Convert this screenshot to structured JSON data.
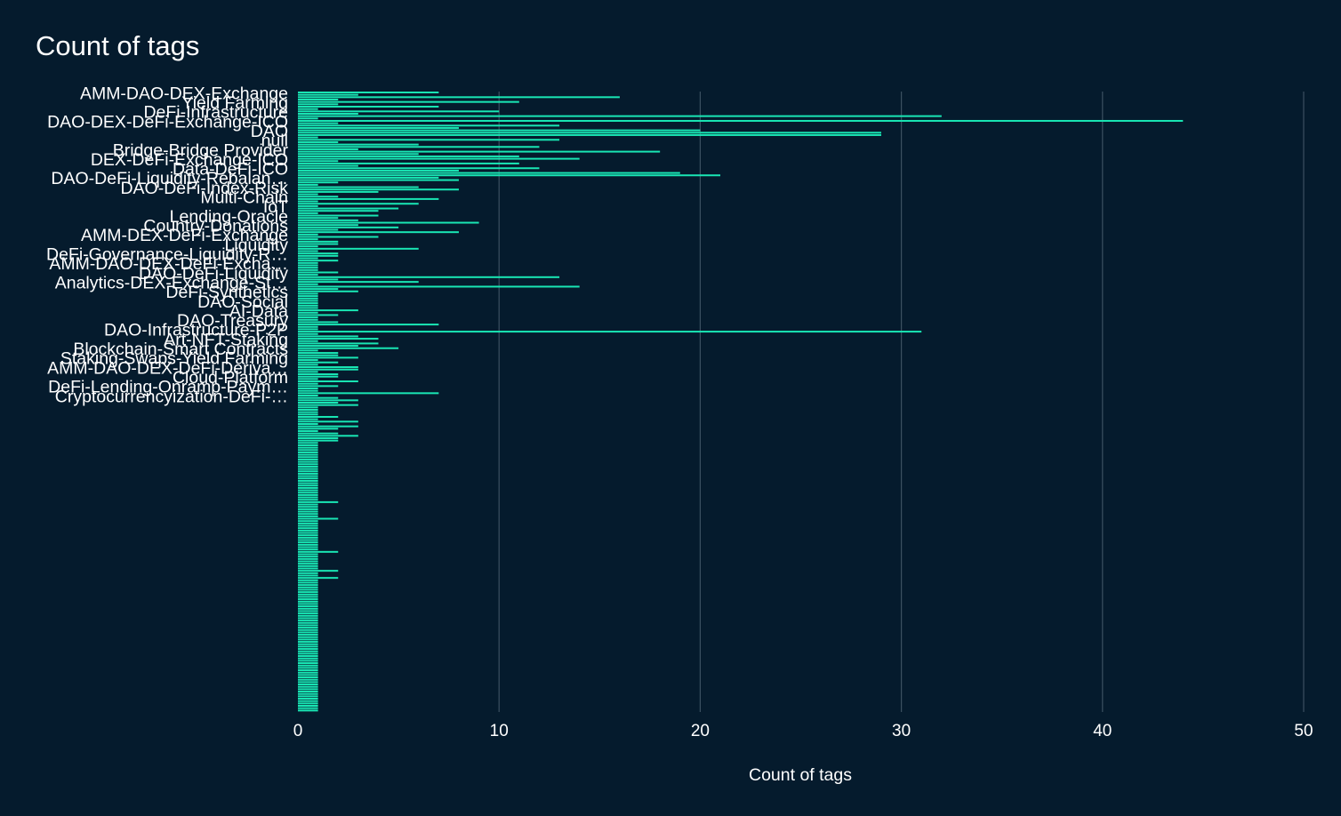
{
  "chart_data": {
    "type": "bar",
    "orientation": "horizontal",
    "title": "Count of tags",
    "xlabel": "Count of tags",
    "ylabel": "",
    "xlim": [
      0,
      50
    ],
    "xticks": [
      0,
      10,
      20,
      30,
      40,
      50
    ],
    "grid": "vertical",
    "bar_color": "#19e6b4",
    "background": "#051b2d",
    "shown_category_labels": [
      "AMM-DAO-DEX-Exchange",
      "Yield Farming",
      "DeFi-Infrastructure",
      "DAO-DEX-DeFi-Exchange-ICO",
      "DAO",
      "null",
      "Bridge-Bridge Provider",
      "DEX-DeFi-Exchange-ICO",
      "Data-DeFi-ICO",
      "DAO-DeFi-Liquidity-Rebalan…",
      "DAO-DeFi-Index-Risk",
      "Multi-Chain",
      "IoT",
      "Lending-Oracle",
      "Country-Donations",
      "AMM-DEX-DeFi-Exchange",
      "Liquidity",
      "DeFi-Governance-Liquidity-R…",
      "AMM-DAO-DEX-DeFi-Excha…",
      "DAO-DeFi-Liquidity",
      "Analytics-DEX-Exchange-St…",
      "DeFi-Synthetics",
      "DAO-Social",
      "AI-Data",
      "DAO-Treasury",
      "DAO-Infrastructure-P2P",
      "Art-NFT-Staking",
      "Blockchain-Smart Contracts",
      "Staking-Swaps-Yield Farming",
      "AMM-DAO-DEX-DeFi-Deriva…",
      "Cloud-Platform",
      "DeFi-Lending-Onramp-Paym…",
      "Cryptocurrencyization-DeFi-…"
    ],
    "label_every": 4,
    "values": [
      7,
      3,
      16,
      2,
      11,
      2,
      7,
      1,
      10,
      3,
      32,
      1,
      44,
      2,
      13,
      8,
      20,
      29,
      29,
      1,
      13,
      2,
      6,
      12,
      3,
      18,
      6,
      11,
      14,
      2,
      11,
      3,
      12,
      8,
      19,
      21,
      7,
      8,
      2,
      1,
      6,
      8,
      4,
      1,
      2,
      7,
      1,
      6,
      1,
      5,
      4,
      1,
      4,
      2,
      3,
      9,
      3,
      5,
      2,
      8,
      1,
      4,
      1,
      2,
      2,
      1,
      6,
      1,
      2,
      2,
      1,
      2,
      1,
      1,
      1,
      1,
      2,
      1,
      13,
      2,
      6,
      1,
      14,
      2,
      3,
      1,
      1,
      1,
      1,
      1,
      1,
      1,
      3,
      1,
      2,
      1,
      1,
      2,
      7,
      1,
      1,
      31,
      1,
      3,
      4,
      1,
      4,
      3,
      5,
      1,
      2,
      2,
      3,
      1,
      2,
      1,
      3,
      3,
      1,
      2,
      2,
      1,
      3,
      1,
      2,
      1,
      1,
      7,
      1,
      2,
      3,
      2,
      3,
      1,
      1,
      1,
      1,
      2,
      1,
      3,
      1,
      3,
      2,
      1,
      2,
      3,
      2,
      2,
      1,
      1,
      1,
      1,
      1,
      1,
      1,
      1,
      1,
      1,
      1,
      1,
      1,
      1,
      1,
      1,
      1,
      1,
      1,
      1,
      1,
      1,
      1,
      1,
      1,
      2,
      1,
      1,
      1,
      1,
      1,
      1,
      2,
      1,
      1,
      1,
      1,
      1,
      1,
      1,
      1,
      1,
      1,
      1,
      1,
      1,
      2,
      1,
      1,
      1,
      1,
      1,
      1,
      1,
      2,
      1,
      1,
      2,
      1,
      1,
      1,
      1,
      1,
      1,
      1,
      1,
      1,
      1,
      1,
      1,
      1,
      1,
      1,
      1,
      1,
      1,
      1,
      1,
      1,
      1,
      1,
      1,
      1,
      1,
      1,
      1,
      1,
      1,
      1,
      1,
      1,
      1,
      1,
      1,
      1,
      1,
      1,
      1,
      1,
      1,
      1,
      1,
      1,
      1,
      1,
      1,
      1,
      1,
      1,
      1,
      1,
      1,
      1,
      1
    ]
  }
}
